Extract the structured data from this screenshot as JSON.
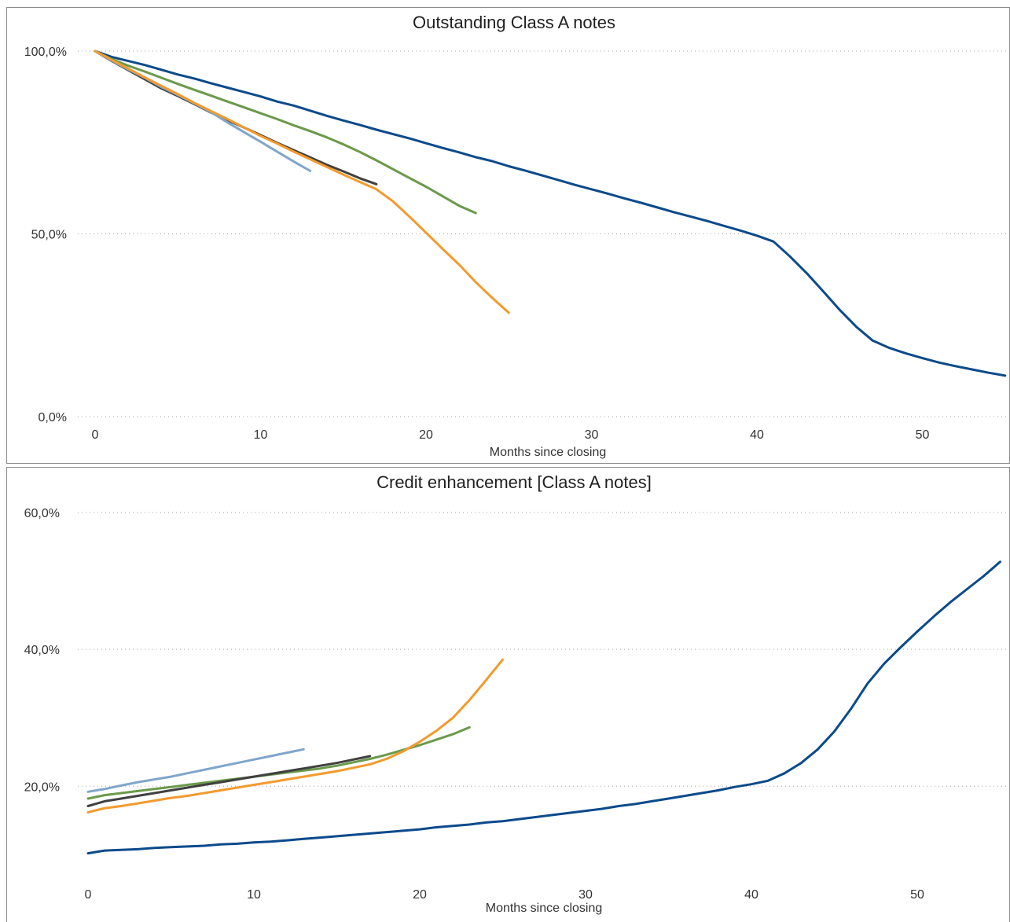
{
  "colors": {
    "navy": "#0b4a8b",
    "orange": "#f39a2d",
    "green": "#6a9a4a",
    "light_blue": "#7fa6c9",
    "dark_gray": "#404040"
  },
  "chart_data": [
    {
      "type": "line",
      "title": "Outstanding Class A notes",
      "xlabel": "Months since closing",
      "ylabel": "",
      "xlim": [
        -1,
        55
      ],
      "ylim": [
        0,
        100
      ],
      "x_ticks": [
        0,
        10,
        20,
        30,
        40,
        50
      ],
      "x_tick_labels": [
        "0",
        "10",
        "20",
        "30",
        "40",
        "50"
      ],
      "y_ticks": [
        0,
        50,
        100
      ],
      "y_tick_labels": [
        "0,0%",
        "50,0%",
        "100,0%"
      ],
      "grid": "horizontal dotted",
      "series": [
        {
          "color": "#0b4a8b",
          "x": [
            0,
            1,
            2,
            3,
            4,
            5,
            6,
            7,
            8,
            9,
            10,
            11,
            12,
            13,
            14,
            15,
            16,
            17,
            18,
            19,
            20,
            21,
            22,
            23,
            24,
            25,
            26,
            27,
            28,
            29,
            30,
            31,
            32,
            33,
            34,
            35,
            36,
            37,
            38,
            39,
            40,
            41,
            42,
            43,
            44,
            45,
            46,
            47,
            48,
            49,
            50,
            51,
            52,
            53,
            54,
            55
          ],
          "y": [
            100,
            98.4,
            97.3,
            96.2,
            94.9,
            93.6,
            92.5,
            91.2,
            90,
            88.8,
            87.6,
            86.2,
            85.1,
            83.7,
            82.3,
            81,
            79.8,
            78.5,
            77.3,
            76.1,
            74.8,
            73.5,
            72.3,
            71,
            69.9,
            68.5,
            67.3,
            66,
            64.7,
            63.4,
            62.2,
            61,
            59.7,
            58.5,
            57.2,
            55.9,
            54.7,
            53.5,
            52.2,
            50.9,
            49.5,
            47.9,
            43.8,
            39.3,
            34.3,
            29.2,
            24.6,
            20.8,
            18.8,
            17.3,
            16,
            14.8,
            13.8,
            12.9,
            12,
            11.2
          ]
        },
        {
          "color": "#6a9a4a",
          "x": [
            0,
            1,
            2,
            3,
            4,
            5,
            6,
            7,
            8,
            9,
            10,
            11,
            12,
            13,
            14,
            15,
            16,
            17,
            18,
            19,
            20,
            21,
            22,
            23
          ],
          "y": [
            100,
            97.8,
            96,
            94.4,
            92.7,
            91,
            89.4,
            87.8,
            86.2,
            84.6,
            83,
            81.4,
            79.7,
            78.1,
            76.4,
            74.5,
            72.4,
            70.1,
            67.7,
            65.3,
            62.9,
            60.3,
            57.7,
            55.7
          ]
        },
        {
          "color": "#404040",
          "x": [
            0,
            1,
            2,
            3,
            4,
            5,
            6,
            7,
            8,
            9,
            10,
            11,
            12,
            13,
            14,
            15,
            16,
            17
          ],
          "y": [
            100,
            97.3,
            94.8,
            92.3,
            89.8,
            87.7,
            85.5,
            83.2,
            81.1,
            79.1,
            77,
            74.9,
            72.9,
            70.9,
            68.9,
            67.1,
            65.2,
            63.6
          ]
        },
        {
          "color": "#7fa6c9",
          "x": [
            0,
            1,
            2,
            3,
            4,
            5,
            6,
            7,
            8,
            9,
            10,
            11,
            12,
            13
          ],
          "y": [
            100,
            97.4,
            95,
            92.7,
            90.2,
            88,
            85.7,
            83.3,
            80.5,
            77.8,
            75.2,
            72.5,
            69.8,
            67.2
          ]
        },
        {
          "color": "#f39a2d",
          "x": [
            0,
            1,
            2,
            3,
            4,
            5,
            6,
            7,
            8,
            9,
            10,
            11,
            12,
            13,
            14,
            15,
            16,
            17,
            18,
            19,
            20,
            21,
            22,
            23,
            24,
            25
          ],
          "y": [
            100,
            97.6,
            95.2,
            92.8,
            90.5,
            88.2,
            85.8,
            83.6,
            81.4,
            79.1,
            76.8,
            74.7,
            72.5,
            70.4,
            68.3,
            66.2,
            64.2,
            62.2,
            58.9,
            54.7,
            50.3,
            45.9,
            41.6,
            36.8,
            32.5,
            28.4
          ]
        }
      ]
    },
    {
      "type": "line",
      "title": "Credit enhancement [Class A notes]",
      "xlabel": "Months since closing",
      "ylabel": "",
      "xlim": [
        -1,
        55
      ],
      "ylim": [
        7.4,
        60
      ],
      "x_ticks": [
        0,
        10,
        20,
        30,
        40,
        50
      ],
      "x_tick_labels": [
        "0",
        "10",
        "20",
        "30",
        "40",
        "50"
      ],
      "y_ticks": [
        20,
        40,
        60
      ],
      "y_tick_labels": [
        "20,0%",
        "40,0%",
        "60,0%"
      ],
      "grid": "horizontal dotted",
      "series": [
        {
          "color": "#0b4a8b",
          "x": [
            0,
            1,
            2,
            3,
            4,
            5,
            6,
            7,
            8,
            9,
            10,
            11,
            12,
            13,
            14,
            15,
            16,
            17,
            18,
            19,
            20,
            21,
            22,
            23,
            24,
            25,
            26,
            27,
            28,
            29,
            30,
            31,
            32,
            33,
            34,
            35,
            36,
            37,
            38,
            39,
            40,
            41,
            42,
            43,
            44,
            45,
            46,
            47,
            48,
            49,
            50,
            51,
            52,
            53,
            54,
            55
          ],
          "y": [
            10.2,
            10.6,
            10.7,
            10.8,
            11,
            11.1,
            11.2,
            11.3,
            11.5,
            11.6,
            11.8,
            11.9,
            12.1,
            12.3,
            12.5,
            12.7,
            12.9,
            13.1,
            13.3,
            13.5,
            13.7,
            14,
            14.2,
            14.4,
            14.7,
            14.9,
            15.2,
            15.5,
            15.8,
            16.1,
            16.4,
            16.7,
            17.1,
            17.4,
            17.8,
            18.2,
            18.6,
            19,
            19.4,
            19.9,
            20.3,
            20.8,
            21.9,
            23.4,
            25.4,
            28,
            31.3,
            35,
            37.9,
            40.3,
            42.6,
            44.8,
            46.9,
            48.8,
            50.7,
            52.8
          ]
        },
        {
          "color": "#7fa6c9",
          "x": [
            0,
            1,
            2,
            3,
            4,
            5,
            6,
            7,
            8,
            9,
            10,
            11,
            12,
            13
          ],
          "y": [
            19.2,
            19.6,
            20.1,
            20.6,
            21,
            21.4,
            21.9,
            22.4,
            22.9,
            23.4,
            23.9,
            24.4,
            24.9,
            25.4
          ]
        },
        {
          "color": "#6a9a4a",
          "x": [
            0,
            1,
            2,
            3,
            4,
            5,
            6,
            7,
            8,
            9,
            10,
            11,
            12,
            13,
            14,
            15,
            16,
            17,
            18,
            19,
            20,
            21,
            22,
            23
          ],
          "y": [
            18.2,
            18.7,
            19,
            19.3,
            19.6,
            19.9,
            20.2,
            20.5,
            20.8,
            21.1,
            21.4,
            21.7,
            22,
            22.3,
            22.6,
            23,
            23.5,
            24,
            24.6,
            25.3,
            26,
            26.8,
            27.6,
            28.6
          ]
        },
        {
          "color": "#404040",
          "x": [
            0,
            1,
            2,
            3,
            4,
            5,
            6,
            7,
            8,
            9,
            10,
            11,
            12,
            13,
            14,
            15,
            16,
            17
          ],
          "y": [
            17.1,
            17.8,
            18.2,
            18.6,
            19,
            19.4,
            19.8,
            20.2,
            20.6,
            21,
            21.4,
            21.8,
            22.2,
            22.6,
            23,
            23.4,
            23.9,
            24.4
          ]
        },
        {
          "color": "#f39a2d",
          "x": [
            0,
            1,
            2,
            3,
            4,
            5,
            6,
            7,
            8,
            9,
            10,
            11,
            12,
            13,
            14,
            15,
            16,
            17,
            18,
            19,
            20,
            21,
            22,
            23,
            24,
            25
          ],
          "y": [
            16.2,
            16.8,
            17.1,
            17.5,
            17.9,
            18.3,
            18.6,
            19,
            19.4,
            19.8,
            20.2,
            20.6,
            21,
            21.4,
            21.8,
            22.2,
            22.7,
            23.2,
            24,
            25.1,
            26.5,
            28.1,
            30,
            32.6,
            35.5,
            38.5
          ]
        }
      ]
    }
  ]
}
